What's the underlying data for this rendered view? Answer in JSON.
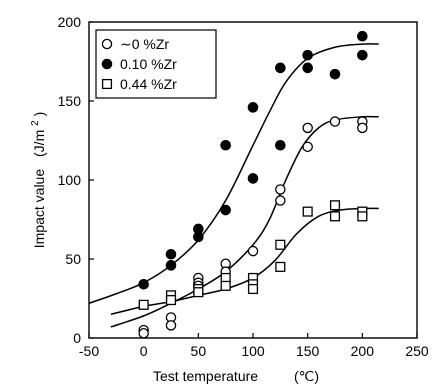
{
  "chart_data": {
    "type": "scatter",
    "x_label": "Test temperature",
    "x_unit": "(℃)",
    "y_label_main": "Impact value",
    "y_label_unit_prefix": "(J/m",
    "y_label_unit_superscript": "2",
    "y_label_unit_suffix": ")",
    "xlim": [
      -50,
      250
    ],
    "ylim": [
      0,
      200
    ],
    "x_ticks": [
      -50,
      0,
      50,
      100,
      150,
      200,
      250
    ],
    "y_ticks": [
      0,
      50,
      100,
      150,
      200
    ],
    "x_tick_labels": [
      "-50",
      "0",
      "50",
      "100",
      "150",
      "200",
      "250"
    ],
    "y_tick_labels": [
      "0",
      "50",
      "100",
      "150",
      "200"
    ],
    "grid": false,
    "legend_position": "top-left",
    "series": [
      {
        "name": "~0 %Zr",
        "legend_label": "∼0 %Zr",
        "marker": "open-circle",
        "points": [
          {
            "x": 0,
            "y": 5
          },
          {
            "x": 0,
            "y": 3
          },
          {
            "x": 25,
            "y": 13
          },
          {
            "x": 25,
            "y": 8
          },
          {
            "x": 50,
            "y": 38
          },
          {
            "x": 50,
            "y": 35
          },
          {
            "x": 50,
            "y": 33
          },
          {
            "x": 75,
            "y": 47
          },
          {
            "x": 75,
            "y": 42
          },
          {
            "x": 100,
            "y": 55
          },
          {
            "x": 125,
            "y": 94
          },
          {
            "x": 125,
            "y": 87
          },
          {
            "x": 150,
            "y": 133
          },
          {
            "x": 150,
            "y": 121
          },
          {
            "x": 175,
            "y": 137
          },
          {
            "x": 200,
            "y": 137
          },
          {
            "x": 200,
            "y": 133
          }
        ],
        "fit": [
          {
            "x": -30,
            "y": 7
          },
          {
            "x": 0,
            "y": 14
          },
          {
            "x": 25,
            "y": 22
          },
          {
            "x": 50,
            "y": 31
          },
          {
            "x": 75,
            "y": 42
          },
          {
            "x": 100,
            "y": 59
          },
          {
            "x": 115,
            "y": 75
          },
          {
            "x": 130,
            "y": 100
          },
          {
            "x": 145,
            "y": 121
          },
          {
            "x": 160,
            "y": 133
          },
          {
            "x": 175,
            "y": 138
          },
          {
            "x": 200,
            "y": 140
          },
          {
            "x": 215,
            "y": 140
          }
        ]
      },
      {
        "name": "0.10 %Zr",
        "legend_label": "0.10 %Zr",
        "marker": "filled-circle",
        "points": [
          {
            "x": 0,
            "y": 34
          },
          {
            "x": 25,
            "y": 53
          },
          {
            "x": 25,
            "y": 46
          },
          {
            "x": 50,
            "y": 69
          },
          {
            "x": 50,
            "y": 64
          },
          {
            "x": 75,
            "y": 122
          },
          {
            "x": 75,
            "y": 81
          },
          {
            "x": 100,
            "y": 146
          },
          {
            "x": 100,
            "y": 101
          },
          {
            "x": 125,
            "y": 171
          },
          {
            "x": 125,
            "y": 122
          },
          {
            "x": 150,
            "y": 179
          },
          {
            "x": 150,
            "y": 171
          },
          {
            "x": 175,
            "y": 167
          },
          {
            "x": 200,
            "y": 191
          },
          {
            "x": 200,
            "y": 179
          }
        ],
        "fit": [
          {
            "x": -50,
            "y": 22
          },
          {
            "x": -25,
            "y": 28
          },
          {
            "x": 0,
            "y": 35
          },
          {
            "x": 25,
            "y": 46
          },
          {
            "x": 50,
            "y": 62
          },
          {
            "x": 75,
            "y": 87
          },
          {
            "x": 100,
            "y": 122
          },
          {
            "x": 115,
            "y": 143
          },
          {
            "x": 130,
            "y": 162
          },
          {
            "x": 150,
            "y": 177
          },
          {
            "x": 175,
            "y": 184
          },
          {
            "x": 200,
            "y": 186
          },
          {
            "x": 215,
            "y": 186
          }
        ]
      },
      {
        "name": "0.44 %Zr",
        "legend_label": "0.44 %Zr",
        "marker": "open-square",
        "points": [
          {
            "x": 0,
            "y": 21
          },
          {
            "x": 25,
            "y": 27
          },
          {
            "x": 25,
            "y": 24
          },
          {
            "x": 50,
            "y": 31
          },
          {
            "x": 50,
            "y": 29
          },
          {
            "x": 75,
            "y": 38
          },
          {
            "x": 75,
            "y": 33
          },
          {
            "x": 100,
            "y": 38
          },
          {
            "x": 100,
            "y": 34
          },
          {
            "x": 100,
            "y": 31
          },
          {
            "x": 125,
            "y": 59
          },
          {
            "x": 125,
            "y": 45
          },
          {
            "x": 150,
            "y": 80
          },
          {
            "x": 175,
            "y": 84
          },
          {
            "x": 175,
            "y": 77
          },
          {
            "x": 200,
            "y": 80
          },
          {
            "x": 200,
            "y": 77
          }
        ],
        "fit": [
          {
            "x": -30,
            "y": 15
          },
          {
            "x": 0,
            "y": 20
          },
          {
            "x": 25,
            "y": 23
          },
          {
            "x": 50,
            "y": 27
          },
          {
            "x": 75,
            "y": 31
          },
          {
            "x": 100,
            "y": 38
          },
          {
            "x": 120,
            "y": 49
          },
          {
            "x": 140,
            "y": 66
          },
          {
            "x": 160,
            "y": 77
          },
          {
            "x": 180,
            "y": 81
          },
          {
            "x": 200,
            "y": 82
          },
          {
            "x": 215,
            "y": 82
          }
        ]
      }
    ]
  }
}
